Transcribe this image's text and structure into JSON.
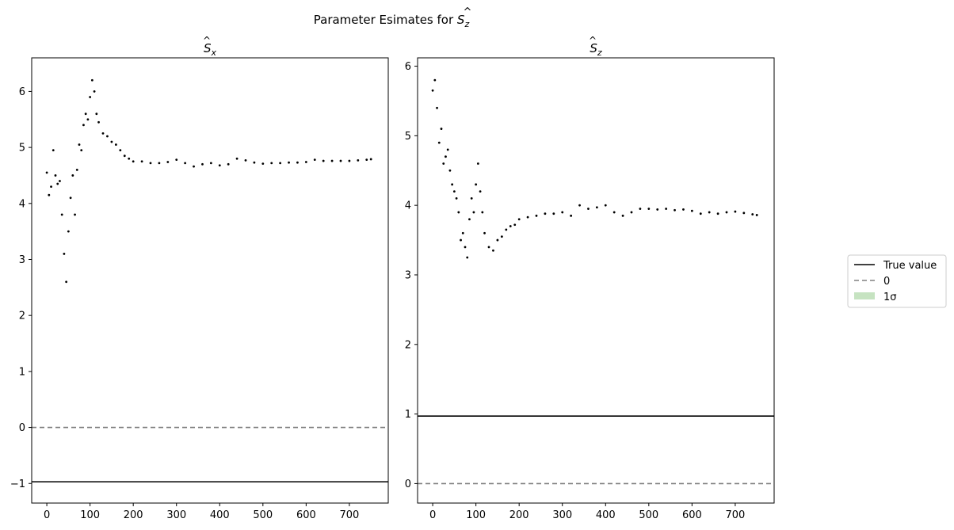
{
  "figure": {
    "suptitle": "Parameter Esimates for Ŝz",
    "suptitle_base": "Parameter Esimates for ",
    "suptitle_sym": "S",
    "suptitle_sub": "z"
  },
  "legend": {
    "placement": "right-center",
    "items": [
      {
        "label": "True value",
        "style": "solid",
        "color": "#000000"
      },
      {
        "label": "0",
        "style": "dashed",
        "color": "#808080"
      },
      {
        "label": "1σ",
        "style": "patch",
        "color": "#c6e3c1"
      }
    ]
  },
  "chart_data": [
    {
      "type": "scatter",
      "title": "Ŝx",
      "title_sym": "S",
      "title_sub": "x",
      "xlim": [
        -35,
        790
      ],
      "ylim": [
        -1.35,
        6.6
      ],
      "xticks": [
        0,
        100,
        200,
        300,
        400,
        500,
        600,
        700
      ],
      "yticks": [
        -1,
        0,
        1,
        2,
        3,
        4,
        5,
        6
      ],
      "true_value": -0.97,
      "zero_line": 0,
      "grid": false,
      "marker_color": "#000000",
      "series": [
        {
          "x": [
            0,
            5,
            10,
            15,
            20,
            25,
            30,
            35,
            40,
            45,
            50,
            55,
            60,
            65,
            70,
            75,
            80,
            85,
            90,
            95,
            100,
            105,
            110,
            115,
            120,
            130,
            140,
            150,
            160,
            170,
            180,
            190,
            200,
            220,
            240,
            260,
            280,
            300,
            320,
            340,
            360,
            380,
            400,
            420,
            440,
            460,
            480,
            500,
            520,
            540,
            560,
            580,
            600,
            620,
            640,
            660,
            680,
            700,
            720,
            740,
            750
          ],
          "y": [
            4.55,
            4.15,
            4.3,
            4.95,
            4.5,
            4.35,
            4.4,
            3.8,
            3.1,
            2.6,
            3.5,
            4.1,
            4.5,
            3.8,
            4.6,
            5.05,
            4.95,
            5.4,
            5.6,
            5.5,
            5.9,
            6.2,
            6.0,
            5.6,
            5.45,
            5.25,
            5.2,
            5.1,
            5.05,
            4.95,
            4.85,
            4.8,
            4.75,
            4.75,
            4.72,
            4.72,
            4.74,
            4.78,
            4.72,
            4.66,
            4.7,
            4.72,
            4.68,
            4.7,
            4.8,
            4.77,
            4.73,
            4.71,
            4.72,
            4.72,
            4.73,
            4.73,
            4.74,
            4.78,
            4.76,
            4.76,
            4.76,
            4.76,
            4.77,
            4.78,
            4.79
          ]
        }
      ]
    },
    {
      "type": "scatter",
      "title": "Ŝz",
      "title_sym": "S",
      "title_sub": "z",
      "xlim": [
        -35,
        790
      ],
      "ylim": [
        -0.28,
        6.12
      ],
      "xticks": [
        0,
        100,
        200,
        300,
        400,
        500,
        600,
        700
      ],
      "yticks": [
        0,
        1,
        2,
        3,
        4,
        5,
        6
      ],
      "true_value": 0.97,
      "zero_line": 0,
      "grid": false,
      "marker_color": "#000000",
      "series": [
        {
          "x": [
            0,
            5,
            10,
            15,
            20,
            25,
            30,
            35,
            40,
            45,
            50,
            55,
            60,
            65,
            70,
            75,
            80,
            85,
            90,
            95,
            100,
            105,
            110,
            115,
            120,
            130,
            140,
            150,
            160,
            170,
            180,
            190,
            200,
            220,
            240,
            260,
            280,
            300,
            320,
            340,
            360,
            380,
            400,
            420,
            440,
            460,
            480,
            500,
            520,
            540,
            560,
            580,
            600,
            620,
            640,
            660,
            680,
            700,
            720,
            740,
            750
          ],
          "y": [
            5.65,
            5.8,
            5.4,
            4.9,
            5.1,
            4.6,
            4.7,
            4.8,
            4.5,
            4.3,
            4.2,
            4.1,
            3.9,
            3.5,
            3.6,
            3.4,
            3.25,
            3.8,
            4.1,
            3.9,
            4.3,
            4.6,
            4.2,
            3.9,
            3.6,
            3.4,
            3.35,
            3.5,
            3.55,
            3.65,
            3.7,
            3.72,
            3.8,
            3.83,
            3.85,
            3.88,
            3.88,
            3.9,
            3.85,
            4.0,
            3.95,
            3.97,
            4.0,
            3.9,
            3.85,
            3.9,
            3.95,
            3.95,
            3.94,
            3.95,
            3.93,
            3.94,
            3.92,
            3.88,
            3.9,
            3.88,
            3.9,
            3.91,
            3.89,
            3.87,
            3.86
          ]
        }
      ]
    }
  ]
}
